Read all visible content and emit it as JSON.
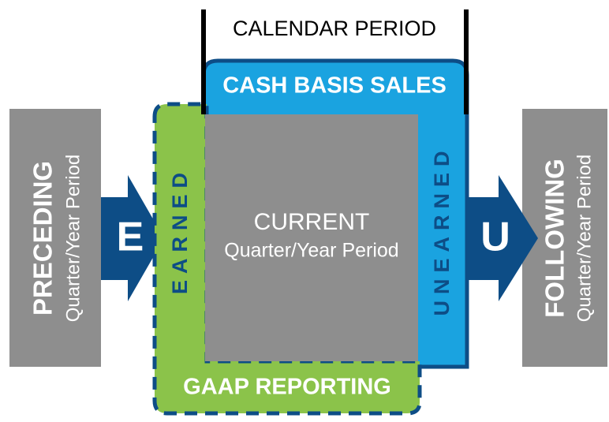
{
  "title": "CALENDAR PERIOD",
  "top_band": "CASH BASIS SALES",
  "bottom_band": "GAAP REPORTING",
  "left_column": "EARNED",
  "right_column": "UNEARNED",
  "left_arrow": "E",
  "right_arrow": "U",
  "center": {
    "title": "CURRENT",
    "subtitle": "Quarter/Year Period"
  },
  "preceding": {
    "title": "PRECEDING",
    "subtitle": "Quarter/Year Period"
  },
  "following": {
    "title": "FOLLOWING",
    "subtitle": "Quarter/Year Period"
  }
}
